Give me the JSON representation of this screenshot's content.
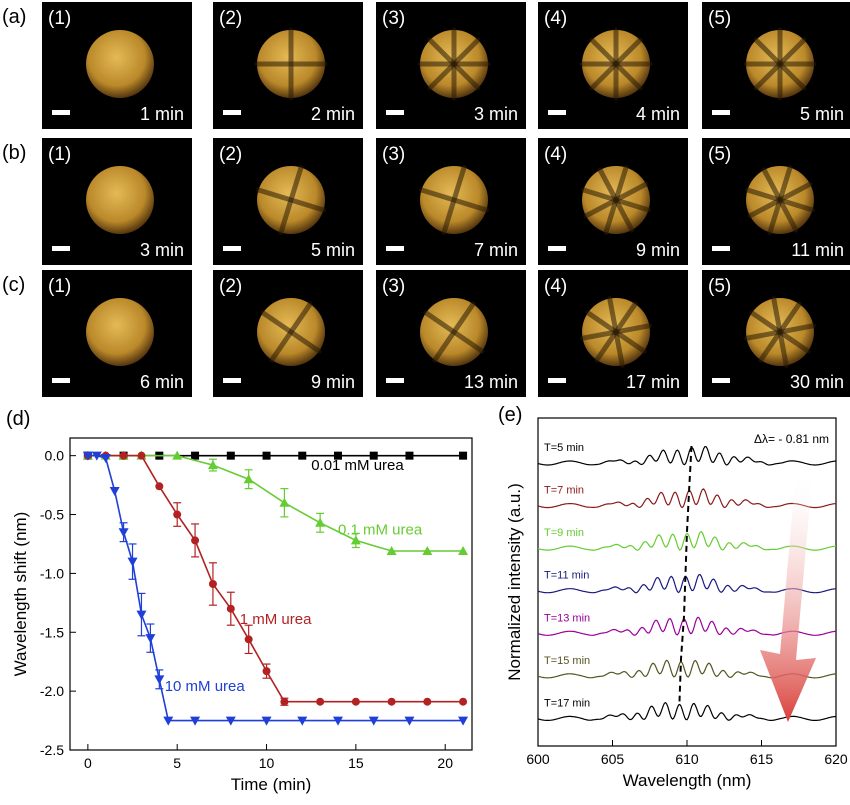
{
  "micrographs": {
    "rows": [
      {
        "label": "(a)",
        "tiles": [
          {
            "index": "(1)",
            "time": "1 min"
          },
          {
            "index": "(2)",
            "time": "2 min"
          },
          {
            "index": "(3)",
            "time": "3 min"
          },
          {
            "index": "(4)",
            "time": "4 min"
          },
          {
            "index": "(5)",
            "time": "5 min"
          }
        ]
      },
      {
        "label": "(b)",
        "tiles": [
          {
            "index": "(1)",
            "time": "3 min"
          },
          {
            "index": "(2)",
            "time": "5 min"
          },
          {
            "index": "(3)",
            "time": "7 min"
          },
          {
            "index": "(4)",
            "time": "9 min"
          },
          {
            "index": "(5)",
            "time": "11 min"
          }
        ]
      },
      {
        "label": "(c)",
        "tiles": [
          {
            "index": "(1)",
            "time": "6 min"
          },
          {
            "index": "(2)",
            "time": "9 min"
          },
          {
            "index": "(3)",
            "time": "13 min"
          },
          {
            "index": "(4)",
            "time": "17 min"
          },
          {
            "index": "(5)",
            "time": "30 min"
          }
        ]
      }
    ]
  },
  "colors": {
    "black": "#000000",
    "green": "#66cc33",
    "red": "#b22222",
    "blue": "#1f3fd6",
    "darkred": "#8b1a1a",
    "purple": "#990099",
    "olive": "#555522",
    "navy": "#1a1a80",
    "arrow": "#d9403a"
  },
  "chart_data": [
    {
      "panel": "(d)",
      "type": "line",
      "xlabel": "Time (min)",
      "ylabel": "Wavelength shift (nm)",
      "xlim": [
        -1,
        21.5
      ],
      "ylim": [
        -2.5,
        0.15
      ],
      "xticks": [
        0,
        5,
        10,
        15,
        20
      ],
      "yticks": [
        0.0,
        -0.5,
        -1.0,
        -1.5,
        -2.0,
        -2.5
      ],
      "grid": false,
      "series": [
        {
          "name": "0.01 mM urea",
          "marker": "square",
          "color": "#000000",
          "x": [
            0,
            2,
            4,
            6,
            8,
            10,
            12,
            14,
            16,
            18,
            21
          ],
          "y": [
            0,
            0,
            0,
            0,
            0,
            0,
            0,
            0,
            0,
            0,
            0
          ],
          "err": [
            0,
            0,
            0,
            0,
            0,
            0,
            0,
            0,
            0,
            0,
            0
          ]
        },
        {
          "name": "0.1 mM urea",
          "marker": "triangle-up",
          "color": "#66cc33",
          "x": [
            0,
            1,
            2,
            3,
            5,
            7,
            9,
            11,
            13,
            15,
            17,
            19,
            21
          ],
          "y": [
            0,
            0,
            0,
            0,
            0,
            -0.08,
            -0.2,
            -0.4,
            -0.57,
            -0.72,
            -0.81,
            -0.81,
            -0.81
          ],
          "err": [
            0,
            0,
            0,
            0,
            0,
            0.05,
            0.08,
            0.12,
            0.08,
            0.06,
            0,
            0,
            0
          ]
        },
        {
          "name": "1 mM urea",
          "marker": "circle",
          "color": "#b22222",
          "x": [
            0,
            1,
            2,
            3,
            4,
            5,
            6,
            7,
            8,
            9,
            10,
            11,
            13,
            15,
            17,
            19,
            21
          ],
          "y": [
            0,
            0,
            0,
            0,
            -0.26,
            -0.5,
            -0.72,
            -1.09,
            -1.3,
            -1.56,
            -1.83,
            -2.09,
            -2.09,
            -2.09,
            -2.09,
            -2.09,
            -2.09
          ],
          "err": [
            0,
            0,
            0,
            0,
            0,
            0.1,
            0.14,
            0.18,
            0.14,
            0.12,
            0.06,
            0.03,
            0,
            0,
            0,
            0,
            0
          ]
        },
        {
          "name": "10 mM urea",
          "marker": "triangle-down",
          "color": "#1f3fd6",
          "x": [
            0,
            0.5,
            1,
            1.5,
            2,
            2.5,
            3,
            3.5,
            4,
            4.5,
            6,
            8,
            10,
            12,
            14,
            16,
            18,
            21
          ],
          "y": [
            0,
            0,
            -0.02,
            -0.3,
            -0.65,
            -0.9,
            -1.35,
            -1.55,
            -1.9,
            -2.25,
            -2.25,
            -2.25,
            -2.25,
            -2.25,
            -2.25,
            -2.25,
            -2.25,
            -2.25
          ],
          "err": [
            0,
            0,
            0,
            0,
            0.08,
            0.15,
            0.18,
            0.12,
            0.08,
            0,
            0,
            0,
            0,
            0,
            0,
            0,
            0,
            0
          ]
        }
      ]
    },
    {
      "panel": "(e)",
      "type": "line",
      "xlabel": "Wavelength (nm)",
      "ylabel": "Normalized intensity (a.u.)",
      "xlim": [
        600,
        620
      ],
      "xticks": [
        600,
        605,
        610,
        615,
        620
      ],
      "grid": false,
      "annotation": "Δλ= - 0.81 nm",
      "series": [
        {
          "name": "T=5 min",
          "color": "#000000",
          "peak": 610.3
        },
        {
          "name": "T=7 min",
          "color": "#8b1a1a",
          "peak": 610.15
        },
        {
          "name": "T=9 min",
          "color": "#66cc33",
          "peak": 610.0
        },
        {
          "name": "T=11 min",
          "color": "#1a1a80",
          "peak": 609.9
        },
        {
          "name": "T=13 min",
          "color": "#990099",
          "peak": 609.8
        },
        {
          "name": "T=15 min",
          "color": "#555522",
          "peak": 609.6
        },
        {
          "name": "T=17 min",
          "color": "#000000",
          "peak": 609.5
        }
      ]
    }
  ]
}
